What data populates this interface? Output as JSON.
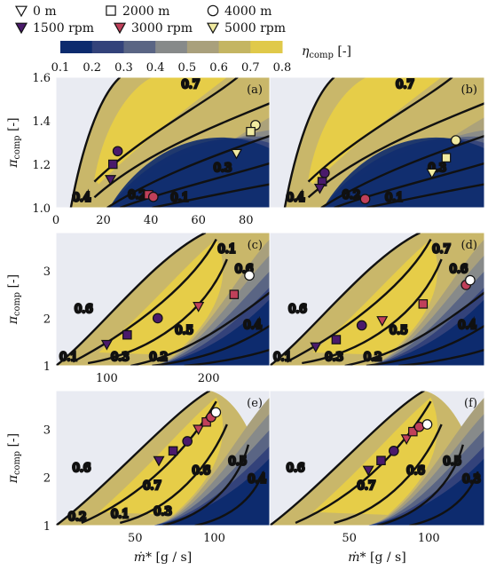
{
  "legend": {
    "markers": [
      {
        "shape": "down-triangle-open",
        "label": "0 m"
      },
      {
        "shape": "square-open",
        "label": "2000 m"
      },
      {
        "shape": "circle-open",
        "label": "4000 m"
      },
      {
        "shape": "down-triangle",
        "color": "#4a1a6b",
        "label": "1500 rpm"
      },
      {
        "shape": "down-triangle",
        "color": "#c0405a",
        "label": "3000 rpm"
      },
      {
        "shape": "down-triangle",
        "color": "#f0eaa0",
        "label": "5000 rpm"
      }
    ],
    "colorbar": {
      "label": "η_comp [-]",
      "ticks": [
        "0.1",
        "0.2",
        "0.3",
        "0.4",
        "0.5",
        "0.6",
        "0.7",
        "0.8"
      ],
      "colors": [
        "#0d2b6e",
        "#33427a",
        "#5a6584",
        "#878a8a",
        "#a9a07c",
        "#c4b562",
        "#e0c94a"
      ]
    }
  },
  "chart_data": [
    {
      "type": "contour",
      "panel": "(a)",
      "xlim": [
        0,
        90
      ],
      "ylim": [
        1.0,
        1.6
      ],
      "xticks": [
        "0",
        "20",
        "40",
        "60",
        "80"
      ],
      "yticks": [
        "1.0",
        "1.2",
        "1.4",
        "1.6"
      ],
      "ylabel": "π_comp [-]",
      "contour_labels": [
        "0.7",
        "0.3",
        "0.4",
        "0.2",
        "0.1"
      ],
      "points": [
        {
          "group": "1500 rpm",
          "shape": "circle",
          "x": 26,
          "y": 1.26
        },
        {
          "group": "1500 rpm",
          "shape": "square",
          "x": 24,
          "y": 1.2
        },
        {
          "group": "1500 rpm",
          "shape": "triangle",
          "x": 23,
          "y": 1.13
        },
        {
          "group": "3000 rpm",
          "shape": "square",
          "x": 39,
          "y": 1.06
        },
        {
          "group": "3000 rpm",
          "shape": "circle",
          "x": 41,
          "y": 1.05
        },
        {
          "group": "5000 rpm",
          "shape": "circle",
          "x": 84,
          "y": 1.38
        },
        {
          "group": "5000 rpm",
          "shape": "square",
          "x": 82,
          "y": 1.35
        },
        {
          "group": "5000 rpm",
          "shape": "triangle",
          "x": 76,
          "y": 1.25
        }
      ]
    },
    {
      "type": "contour",
      "panel": "(b)",
      "xlim": [
        0,
        90
      ],
      "ylim": [
        1.0,
        1.6
      ],
      "contour_labels": [
        "0.7",
        "0.3",
        "0.4",
        "0.2",
        "0.1"
      ],
      "points": [
        {
          "group": "1500 rpm",
          "shape": "circle",
          "x": 23,
          "y": 1.16
        },
        {
          "group": "1500 rpm",
          "shape": "square",
          "x": 22,
          "y": 1.12
        },
        {
          "group": "1500 rpm",
          "shape": "triangle",
          "x": 21,
          "y": 1.09
        },
        {
          "group": "3000 rpm",
          "shape": "circle",
          "x": 40,
          "y": 1.04
        },
        {
          "group": "5000 rpm",
          "shape": "circle",
          "x": 78,
          "y": 1.31
        },
        {
          "group": "5000 rpm",
          "shape": "square",
          "x": 74,
          "y": 1.23
        },
        {
          "group": "5000 rpm",
          "shape": "triangle",
          "x": 68,
          "y": 1.16
        }
      ]
    },
    {
      "type": "contour",
      "panel": "(c)",
      "xlim": [
        50,
        260
      ],
      "ylim": [
        1,
        3.8
      ],
      "xticks": [
        "100",
        "200"
      ],
      "yticks": [
        "1",
        "2",
        "3"
      ],
      "ylabel": "π_comp [-]",
      "contour_labels": [
        "0.6",
        "0.1",
        "0.6",
        "0.5",
        "0.4",
        "0.1",
        "0.3",
        "0.2"
      ],
      "points": [
        {
          "group": "1500 rpm",
          "shape": "triangle",
          "x": 100,
          "y": 1.45
        },
        {
          "group": "1500 rpm",
          "shape": "square",
          "x": 120,
          "y": 1.65
        },
        {
          "group": "1500 rpm",
          "shape": "circle",
          "x": 150,
          "y": 2.0
        },
        {
          "group": "3000 rpm",
          "shape": "triangle",
          "x": 190,
          "y": 2.25
        },
        {
          "group": "3000 rpm",
          "shape": "square",
          "x": 225,
          "y": 2.5
        },
        {
          "group": "4000 m",
          "shape": "circle-open",
          "x": 240,
          "y": 2.9
        }
      ]
    },
    {
      "type": "contour",
      "panel": "(d)",
      "xlim": [
        50,
        260
      ],
      "ylim": [
        1,
        3.8
      ],
      "contour_labels": [
        "0.6",
        "0.7",
        "0.6",
        "0.5",
        "0.4",
        "0.1",
        "0.3",
        "0.2"
      ],
      "points": [
        {
          "group": "1500 rpm",
          "shape": "triangle",
          "x": 95,
          "y": 1.4
        },
        {
          "group": "1500 rpm",
          "shape": "square",
          "x": 115,
          "y": 1.55
        },
        {
          "group": "1500 rpm",
          "shape": "circle",
          "x": 140,
          "y": 1.85
        },
        {
          "group": "3000 rpm",
          "shape": "triangle",
          "x": 160,
          "y": 1.95
        },
        {
          "group": "3000 rpm",
          "shape": "square",
          "x": 200,
          "y": 2.3
        },
        {
          "group": "3000 rpm",
          "shape": "circle",
          "x": 242,
          "y": 2.7
        },
        {
          "group": "4000 m",
          "shape": "circle-open",
          "x": 246,
          "y": 2.8
        }
      ]
    },
    {
      "type": "contour",
      "panel": "(e)",
      "xlim": [
        0,
        135
      ],
      "ylim": [
        1,
        3.8
      ],
      "xticks": [
        "50",
        "100"
      ],
      "yticks": [
        "1",
        "2",
        "3"
      ],
      "xlabel": "ṁ* [g / s]",
      "ylabel": "π_comp [-]",
      "contour_labels": [
        "0.6",
        "0.7",
        "0.6",
        "0.5",
        "0.4",
        "0.2",
        "0.1",
        "0.3"
      ],
      "points": [
        {
          "group": "1500 rpm",
          "shape": "triangle",
          "x": 65,
          "y": 2.35
        },
        {
          "group": "1500 rpm",
          "shape": "square",
          "x": 74,
          "y": 2.55
        },
        {
          "group": "1500 rpm",
          "shape": "circle",
          "x": 83,
          "y": 2.75
        },
        {
          "group": "3000 rpm",
          "shape": "triangle",
          "x": 90,
          "y": 3.0
        },
        {
          "group": "3000 rpm",
          "shape": "square",
          "x": 95,
          "y": 3.15
        },
        {
          "group": "3000 rpm",
          "shape": "circle",
          "x": 98,
          "y": 3.25
        },
        {
          "group": "4000 m",
          "shape": "circle-open",
          "x": 101,
          "y": 3.35
        }
      ]
    },
    {
      "type": "contour",
      "panel": "(f)",
      "xlim": [
        0,
        135
      ],
      "ylim": [
        1,
        3.8
      ],
      "xticks": [
        "50",
        "100"
      ],
      "xlabel": "ṁ* [g / s]",
      "contour_labels": [
        "0.6",
        "0.7",
        "0.6",
        "0.5",
        "0.3"
      ],
      "points": [
        {
          "group": "1500 rpm",
          "shape": "triangle",
          "x": 62,
          "y": 2.15
        },
        {
          "group": "1500 rpm",
          "shape": "square",
          "x": 70,
          "y": 2.35
        },
        {
          "group": "1500 rpm",
          "shape": "circle",
          "x": 78,
          "y": 2.55
        },
        {
          "group": "3000 rpm",
          "shape": "triangle",
          "x": 86,
          "y": 2.8
        },
        {
          "group": "3000 rpm",
          "shape": "square",
          "x": 90,
          "y": 2.95
        },
        {
          "group": "3000 rpm",
          "shape": "circle",
          "x": 94,
          "y": 3.05
        },
        {
          "group": "4000 m",
          "shape": "circle-open",
          "x": 99,
          "y": 3.1
        }
      ]
    }
  ]
}
